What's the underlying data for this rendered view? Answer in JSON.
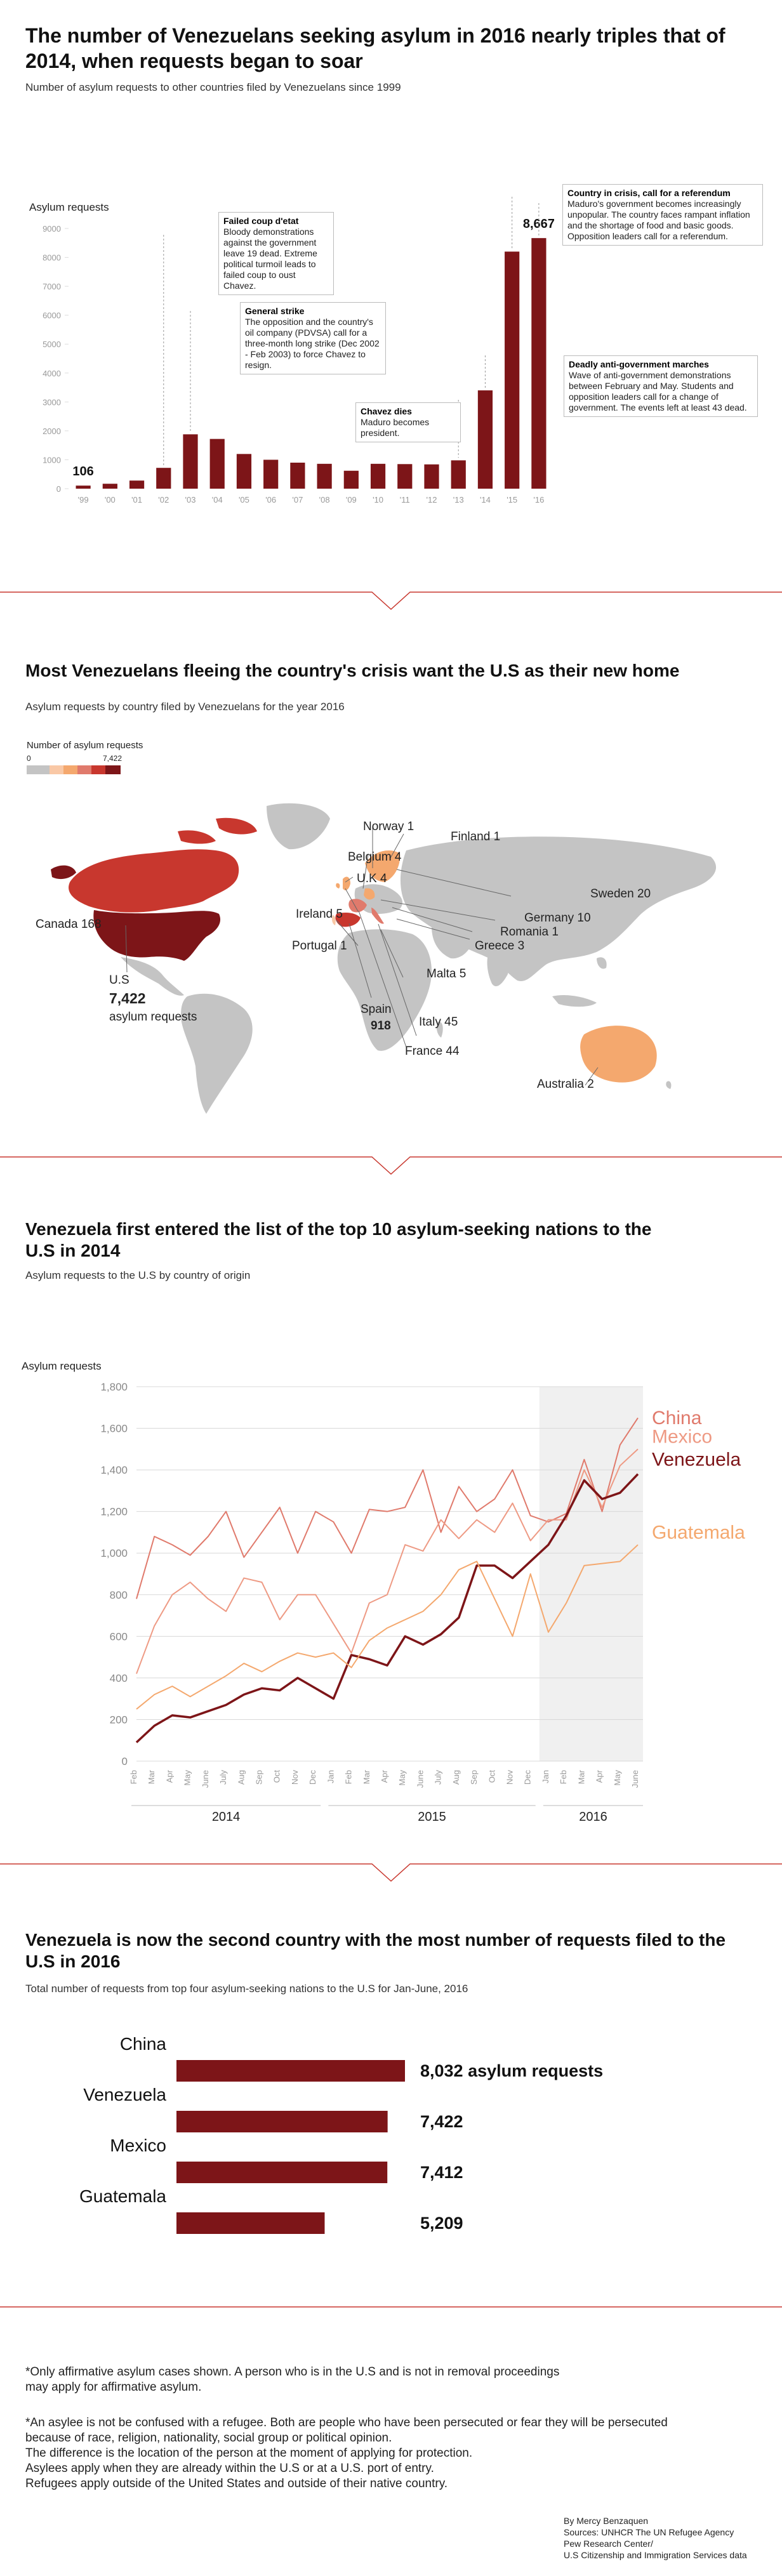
{
  "section1": {
    "title": "The number of Venezuelans seeking asylum in 2016 nearly triples that of 2014, when requests began to soar",
    "subtitle": "Number of asylum requests to other countries filed by Venezuelans since 1999",
    "ylabel": "Asylum requests",
    "annotations": [
      {
        "title": "Failed coup d'etat",
        "body": "Bloody demonstrations against the government leave 19 dead. Extreme political turmoil leads to failed coup to oust Chavez."
      },
      {
        "title": "General strike",
        "body": "The opposition and the country's oil company (PDVSA) call for a three-month long strike (Dec 2002 - Feb 2003) to force Chavez to resign."
      },
      {
        "title": "Chavez dies",
        "body": "Maduro becomes president."
      },
      {
        "title": "Deadly anti-government marches",
        "body": "Wave of anti-government demonstrations between February and May. Students and opposition leaders call for a change of government. The events left at least 43 dead."
      },
      {
        "title": "Country in crisis, call for a referendum",
        "body": "Maduro's government becomes increasingly unpopular. The country faces rampant inflation and the shortage of food and basic goods. Opposition leaders call for a referendum."
      }
    ]
  },
  "section2": {
    "title": "Most Venezuelans fleeing the country's crisis want the U.S as their new home",
    "subtitle": "Asylum requests by country filed by Venezuelans for the year 2016",
    "legend_title": "Number of asylum requests",
    "legend_min": "0",
    "legend_max": "7,422",
    "labels": {
      "norway": "Norway 1",
      "finland": "Finland 1",
      "belgium": "Belgium 4",
      "uk": "U.K 4",
      "ireland": "Ireland 5",
      "sweden": "Sweden 20",
      "canada": "Canada 168",
      "germany": "Germany 10",
      "romania": "Romania 1",
      "greece": "Greece 3",
      "portugal": "Portugal 1",
      "malta": "Malta 5",
      "us_name": "U.S",
      "us_value": "7,422",
      "us_unit": "asylum requests",
      "spain_name": "Spain",
      "spain_value": "918",
      "italy": "Italy 45",
      "france": "France 44",
      "australia": "Australia 2"
    }
  },
  "section3": {
    "title": "Venezuela first entered the list of the top 10 asylum-seeking nations to the U.S in 2014",
    "subtitle": "Asylum requests to the U.S by country of origin",
    "ylabel": "Asylum requests"
  },
  "section4": {
    "title": "Venezuela is now the second country with the most number of requests filed to the U.S in 2016",
    "subtitle": "Total number of requests from top four asylum-seeking nations to the U.S for Jan-June, 2016"
  },
  "footnotes": {
    "note1": "*Only affirmative asylum cases shown. A person who is in the U.S and is not in removal proceedings may apply for affirmative asylum.",
    "note2a": "*An asylee is not be confused with a refugee. Both are people who have been persecuted or fear they will be persecuted because of race, religion, nationality, social group or political opinion.",
    "note2b": "The difference is the location of the person at the moment of applying for protection.",
    "note2c": "Asylees apply when they are already within the U.S or at a U.S. port of entry.",
    "note2d": "Refugees apply outside of the United States and outside of their native country."
  },
  "credits": {
    "author": "By Mercy Benzaquen",
    "sources1": "Sources: UNHCR The UN Refugee Agency",
    "sources2": "Pew Research Center/",
    "sources3": "U.S Citizenship and Immigration Services data"
  },
  "colors": {
    "dark_red": "#7d1518",
    "mid_red": "#c8372e",
    "light_red": "#e07a6c",
    "orange": "#f4a86e",
    "grey_land": "#c4c4c4"
  },
  "chart_data": [
    {
      "type": "bar",
      "categories": [
        "'99",
        "'00",
        "'01",
        "'02",
        "'03",
        "'04",
        "'05",
        "'06",
        "'07",
        "'08",
        "'09",
        "'10",
        "'11",
        "'12",
        "'13",
        "'14",
        "'15",
        "'16"
      ],
      "values": [
        106,
        170,
        280,
        720,
        1880,
        1720,
        1200,
        1000,
        900,
        860,
        620,
        860,
        850,
        840,
        980,
        3400,
        8200,
        8667
      ],
      "data_labels": {
        "0": "106",
        "17": "8,667"
      },
      "ylabel": "Asylum requests",
      "ylim": [
        0,
        9000
      ],
      "yticks": [
        0,
        1000,
        2000,
        3000,
        4000,
        5000,
        6000,
        7000,
        8000,
        9000
      ]
    },
    {
      "type": "line",
      "x": [
        "Feb",
        "Mar",
        "Apr",
        "May",
        "June",
        "July",
        "Aug",
        "Sep",
        "Oct",
        "Nov",
        "Dec",
        "Jan",
        "Feb",
        "Mar",
        "Apr",
        "May",
        "June",
        "July",
        "Aug",
        "Sep",
        "Oct",
        "Nov",
        "Dec",
        "Jan",
        "Feb",
        "Mar",
        "Apr",
        "May",
        "June"
      ],
      "years": [
        {
          "label": "2014",
          "start": 0,
          "end": 10
        },
        {
          "label": "2015",
          "start": 11,
          "end": 22
        },
        {
          "label": "2016",
          "start": 23,
          "end": 28
        }
      ],
      "ylabel": "Asylum requests",
      "ylim": [
        0,
        1800
      ],
      "yticks": [
        "0",
        "200",
        "400",
        "600",
        "800",
        "1,000",
        "1,200",
        "1,400",
        "1,600",
        "1,800"
      ],
      "highlight_from": 23,
      "series": [
        {
          "name": "China",
          "color": "#e07a6c",
          "values": [
            780,
            1080,
            1040,
            990,
            1080,
            1200,
            980,
            1100,
            1220,
            1000,
            1200,
            1150,
            1000,
            1210,
            1200,
            1220,
            1400,
            1100,
            1320,
            1200,
            1260,
            1400,
            1180,
            1150,
            1190,
            1450,
            1200,
            1520,
            1650
          ]
        },
        {
          "name": "Mexico",
          "color": "#ee9a84",
          "values": [
            420,
            650,
            800,
            860,
            780,
            720,
            880,
            860,
            680,
            800,
            800,
            660,
            520,
            760,
            800,
            1040,
            1010,
            1160,
            1070,
            1160,
            1100,
            1240,
            1060,
            1160,
            1160,
            1400,
            1220,
            1420,
            1500
          ]
        },
        {
          "name": "Venezuela",
          "color": "#7d1518",
          "values": [
            90,
            170,
            220,
            210,
            240,
            270,
            320,
            350,
            340,
            400,
            350,
            300,
            510,
            490,
            460,
            600,
            560,
            610,
            690,
            940,
            940,
            880,
            960,
            1040,
            1180,
            1350,
            1260,
            1290,
            1380
          ]
        },
        {
          "name": "Guatemala",
          "color": "#f4a86e",
          "values": [
            250,
            320,
            360,
            310,
            360,
            410,
            470,
            430,
            480,
            520,
            500,
            520,
            450,
            580,
            640,
            680,
            720,
            800,
            920,
            960,
            780,
            600,
            900,
            620,
            760,
            940,
            950,
            960,
            1040
          ]
        }
      ]
    },
    {
      "type": "bar",
      "orientation": "horizontal",
      "categories": [
        "China",
        "Venezuela",
        "Mexico",
        "Guatemala"
      ],
      "values": [
        8032,
        7422,
        7412,
        5209
      ],
      "data_labels": [
        "8,032 asylum requests",
        "7,422",
        "7,412",
        "5,209"
      ]
    }
  ]
}
